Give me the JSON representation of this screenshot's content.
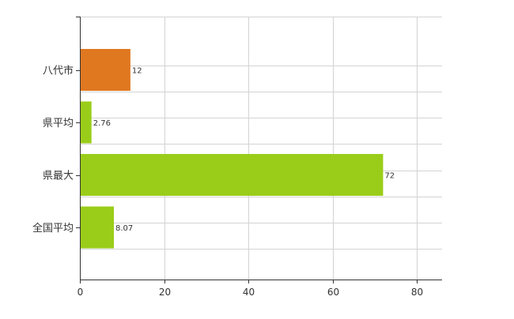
{
  "chart_data": {
    "type": "bar",
    "orientation": "horizontal",
    "categories": [
      "八代市",
      "県平均",
      "県最大",
      "全国平均"
    ],
    "values": [
      12,
      2.76,
      72,
      8.07
    ],
    "value_labels": [
      "12",
      "2.76",
      "72",
      "8.07"
    ],
    "bar_colors": [
      "#e07820",
      "#9acd1a",
      "#9acd1a",
      "#9acd1a"
    ],
    "xlim": [
      0,
      86
    ],
    "xticks": [
      0,
      20,
      40,
      60,
      80
    ],
    "grid": true,
    "legend": "none",
    "title": "",
    "xlabel": "",
    "ylabel": ""
  }
}
